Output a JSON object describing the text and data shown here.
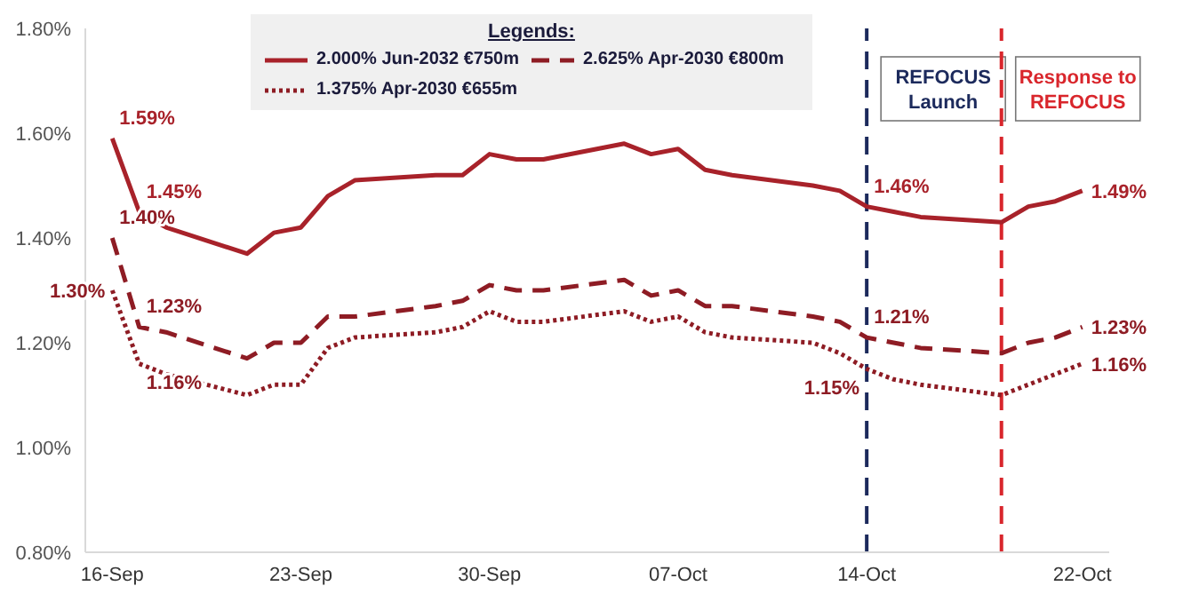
{
  "chart_data": {
    "type": "line",
    "legend_title": "Legends:",
    "legend": "top",
    "marker": "none",
    "grid": false,
    "x": [
      "--09-16",
      "--09-17",
      "--09-18",
      "--09-21",
      "--09-22",
      "--09-23",
      "--09-24",
      "--09-25",
      "--09-28",
      "--09-29",
      "--09-30",
      "--10-01",
      "--10-02",
      "--10-05",
      "--10-06",
      "--10-07",
      "--10-08",
      "--10-09",
      "--10-12",
      "--10-13",
      "--10-14",
      "--10-15",
      "--10-16",
      "--10-19",
      "--10-20",
      "--10-21",
      "--10-22"
    ],
    "xlim": [
      "--09-15",
      "--10-23"
    ],
    "xticks": [
      {
        "value": "--09-16",
        "label": "16-Sep"
      },
      {
        "value": "--09-23",
        "label": "23-Sep"
      },
      {
        "value": "--09-30",
        "label": "30-Sep"
      },
      {
        "value": "--10-07",
        "label": "07-Oct"
      },
      {
        "value": "--10-14",
        "label": "14-Oct"
      },
      {
        "value": "--10-22",
        "label": "22-Oct"
      }
    ],
    "ylim": [
      0.8,
      1.8
    ],
    "yticks": [
      {
        "value": 0.8,
        "label": "0.80%"
      },
      {
        "value": 1.0,
        "label": "1.00%"
      },
      {
        "value": 1.2,
        "label": "1.20%"
      },
      {
        "value": 1.4,
        "label": "1.40%"
      },
      {
        "value": 1.6,
        "label": "1.60%"
      },
      {
        "value": 1.8,
        "label": "1.80%"
      }
    ],
    "series": [
      {
        "name": "2.000% Jun-2032 €750m",
        "color": "#a8222a",
        "line_style": "solid",
        "values": [
          1.59,
          1.45,
          1.42,
          1.37,
          1.41,
          1.42,
          1.48,
          1.51,
          1.52,
          1.52,
          1.56,
          1.55,
          1.55,
          1.58,
          1.56,
          1.57,
          1.53,
          1.52,
          1.5,
          1.49,
          1.46,
          1.45,
          1.44,
          1.43,
          1.46,
          1.47,
          1.49
        ],
        "value_labels": [
          "1.59%",
          "1.45%",
          null,
          null,
          null,
          null,
          null,
          null,
          null,
          null,
          null,
          null,
          null,
          null,
          null,
          null,
          null,
          null,
          null,
          null,
          "1.46%",
          null,
          null,
          null,
          null,
          null,
          "1.49%"
        ]
      },
      {
        "name": "2.625% Apr-2030 €800m",
        "color": "#8e1c24",
        "line_style": "dashed",
        "values": [
          1.4,
          1.23,
          1.22,
          1.17,
          1.2,
          1.2,
          1.25,
          1.25,
          1.27,
          1.28,
          1.31,
          1.3,
          1.3,
          1.32,
          1.29,
          1.3,
          1.27,
          1.27,
          1.25,
          1.24,
          1.21,
          1.2,
          1.19,
          1.18,
          1.2,
          1.21,
          1.23
        ],
        "value_labels": [
          "1.40%",
          "1.23%",
          null,
          null,
          null,
          null,
          null,
          null,
          null,
          null,
          null,
          null,
          null,
          null,
          null,
          null,
          null,
          null,
          null,
          null,
          "1.21%",
          null,
          null,
          null,
          null,
          null,
          "1.23%"
        ]
      },
      {
        "name": "1.375% Apr-2030 €655m",
        "color": "#8e1c24",
        "line_style": "dotted",
        "values": [
          1.3,
          1.16,
          1.14,
          1.1,
          1.12,
          1.12,
          1.19,
          1.21,
          1.22,
          1.23,
          1.26,
          1.24,
          1.24,
          1.26,
          1.24,
          1.25,
          1.22,
          1.21,
          1.2,
          1.18,
          1.15,
          1.13,
          1.12,
          1.1,
          1.12,
          1.14,
          1.16
        ],
        "value_labels": [
          "1.30%",
          "1.16%",
          null,
          null,
          null,
          null,
          null,
          null,
          null,
          null,
          null,
          null,
          null,
          null,
          null,
          null,
          null,
          null,
          null,
          null,
          "1.15%",
          null,
          null,
          null,
          null,
          null,
          "1.16%"
        ]
      }
    ],
    "ref_lines": [
      {
        "axis": "x",
        "value": "--10-14",
        "label": "REFOCUS Launch",
        "color": "#1c2a5c",
        "line_style": "dashed"
      },
      {
        "axis": "x",
        "value": "--10-19",
        "label": "Response to REFOCUS",
        "color": "#d9262c",
        "line_style": "dashed"
      }
    ]
  }
}
